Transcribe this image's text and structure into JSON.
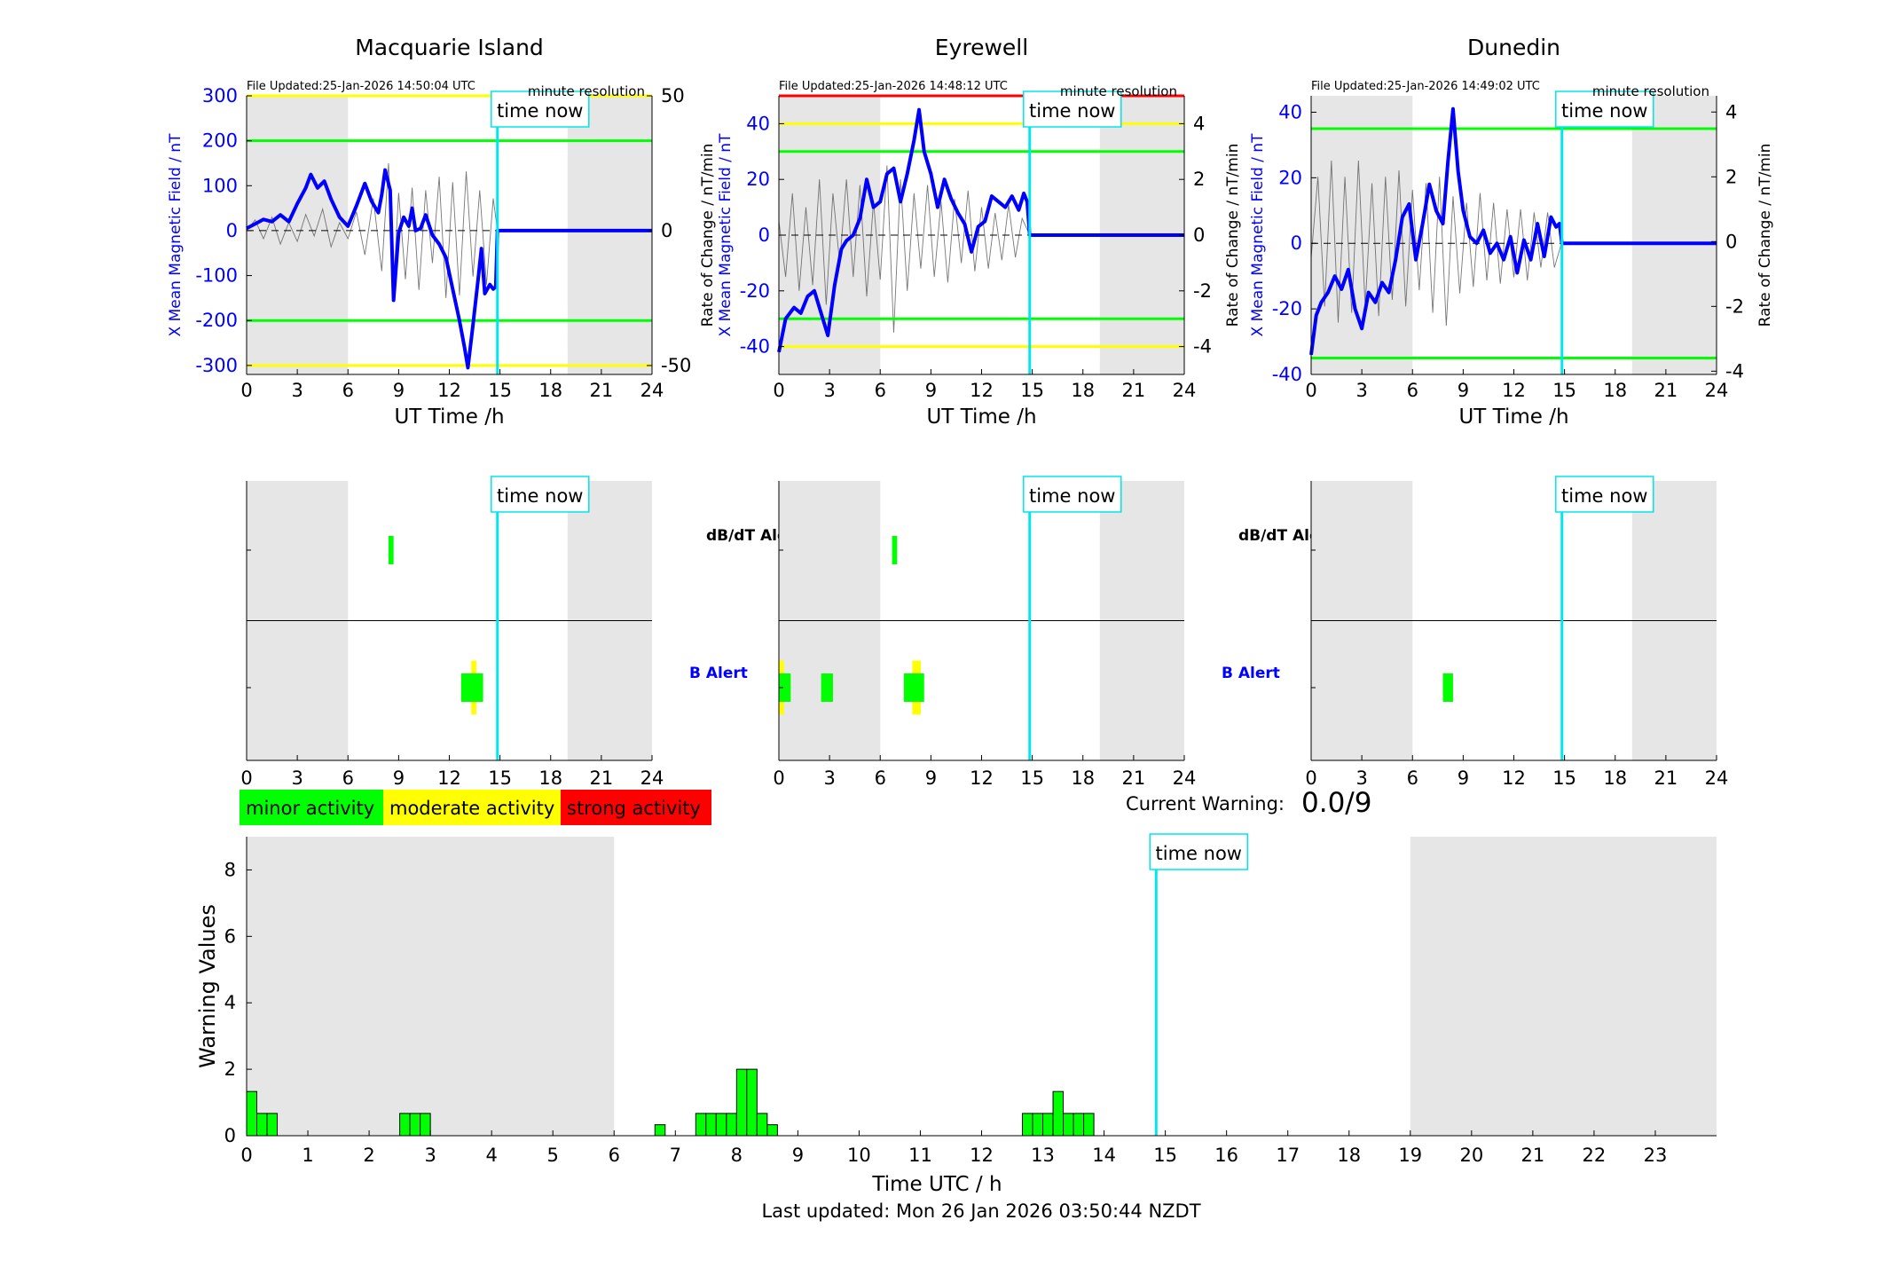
{
  "time_now_label": "time now",
  "timestamp": "Last updated: Mon 26 Jan 2026 03:50:44 NZDT",
  "current_warning": {
    "label": "Current Warning:",
    "value": "0.0/9"
  },
  "legend": [
    {
      "label": "minor activity",
      "color": "#00ff00"
    },
    {
      "label": "moderate activity",
      "color": "#ffff00"
    },
    {
      "label": "strong activity",
      "color": "#ff0000"
    }
  ],
  "colors": {
    "field": "#0000ff",
    "rate": "#555555",
    "night": "#e6e6e6",
    "now": "#00e5ee",
    "green": "#00ff00",
    "yellow": "#ffff00",
    "red": "#ff0000"
  },
  "ut_xlabel": "UT Time /h",
  "ut_ticks": [
    "0",
    "3",
    "6",
    "9",
    "12",
    "15",
    "18",
    "21",
    "24"
  ],
  "alert_labels": {
    "dbdt": "dB/dT Alert",
    "b": "B Alert"
  },
  "chart_data": [
    {
      "type": "line",
      "title": "Macquarie Island",
      "file_updated": "File Updated:25-Jan-2026 14:50:04 UTC",
      "resolution": "minute resolution",
      "ylabel": "X Mean Magnetic Field / nT",
      "y2label": "",
      "xlim": [
        0,
        24
      ],
      "ylim": [
        -320,
        300
      ],
      "y2lim": [
        -53.3,
        50
      ],
      "yticks": [
        "300",
        "200",
        "100",
        "0",
        "-100",
        "-200",
        "-300"
      ],
      "y2ticks": [
        "50",
        "0",
        "-50"
      ],
      "night": [
        [
          0,
          6
        ],
        [
          19,
          24
        ]
      ],
      "now": 14.85,
      "thresholds": [
        {
          "y": 300,
          "c": "yellow"
        },
        {
          "y": 200,
          "c": "green"
        },
        {
          "y": -200,
          "c": "green"
        },
        {
          "y": -300,
          "c": "yellow"
        }
      ],
      "field_points": [
        [
          0,
          5
        ],
        [
          0.5,
          15
        ],
        [
          1,
          25
        ],
        [
          1.5,
          20
        ],
        [
          2,
          35
        ],
        [
          2.5,
          20
        ],
        [
          3,
          60
        ],
        [
          3.5,
          95
        ],
        [
          3.8,
          125
        ],
        [
          4.2,
          95
        ],
        [
          4.6,
          110
        ],
        [
          5,
          70
        ],
        [
          5.5,
          30
        ],
        [
          6,
          10
        ],
        [
          6.5,
          55
        ],
        [
          7,
          105
        ],
        [
          7.4,
          65
        ],
        [
          7.8,
          40
        ],
        [
          8,
          80
        ],
        [
          8.2,
          135
        ],
        [
          8.5,
          90
        ],
        [
          8.7,
          -155
        ],
        [
          9,
          -5
        ],
        [
          9.3,
          30
        ],
        [
          9.6,
          10
        ],
        [
          9.8,
          50
        ],
        [
          10,
          0
        ],
        [
          10.3,
          5
        ],
        [
          10.6,
          35
        ],
        [
          11,
          -10
        ],
        [
          11.4,
          -30
        ],
        [
          11.8,
          -60
        ],
        [
          12.2,
          -130
        ],
        [
          12.6,
          -200
        ],
        [
          12.9,
          -260
        ],
        [
          13.1,
          -305
        ],
        [
          13.4,
          -210
        ],
        [
          13.7,
          -110
        ],
        [
          13.9,
          -40
        ],
        [
          14.1,
          -140
        ],
        [
          14.4,
          -120
        ],
        [
          14.6,
          -130
        ],
        [
          14.75,
          -125
        ],
        [
          14.85,
          0
        ],
        [
          24,
          0
        ]
      ],
      "rate_points": [
        [
          0,
          0
        ],
        [
          0.5,
          4
        ],
        [
          1,
          -3
        ],
        [
          1.5,
          5
        ],
        [
          2,
          -5
        ],
        [
          2.5,
          3
        ],
        [
          3,
          -4
        ],
        [
          3.5,
          6
        ],
        [
          4,
          -2
        ],
        [
          4.5,
          8
        ],
        [
          5,
          -6
        ],
        [
          5.5,
          3
        ],
        [
          6,
          -3
        ],
        [
          6.5,
          7
        ],
        [
          7,
          -9
        ],
        [
          7.5,
          12
        ],
        [
          8,
          -15
        ],
        [
          8.4,
          25
        ],
        [
          8.7,
          -20
        ],
        [
          9,
          14
        ],
        [
          9.4,
          -18
        ],
        [
          9.8,
          16
        ],
        [
          10.2,
          -22
        ],
        [
          10.6,
          15
        ],
        [
          11,
          -12
        ],
        [
          11.4,
          20
        ],
        [
          11.8,
          -25
        ],
        [
          12.2,
          18
        ],
        [
          12.6,
          -24
        ],
        [
          13,
          22
        ],
        [
          13.4,
          -17
        ],
        [
          13.8,
          15
        ],
        [
          14.2,
          -20
        ],
        [
          14.6,
          12
        ],
        [
          14.85,
          0
        ]
      ],
      "alerts": {
        "dbdt": [
          {
            "t0": 8.4,
            "t1": 8.7,
            "c": "green"
          }
        ],
        "b": [
          {
            "t0": 13.3,
            "t1": 13.6,
            "c": "yellow"
          },
          {
            "t0": 12.7,
            "t1": 14.0,
            "c": "green"
          }
        ]
      }
    },
    {
      "type": "line",
      "title": "Eyrewell",
      "file_updated": "File Updated:25-Jan-2026 14:48:12 UTC",
      "resolution": "minute resolution",
      "ylabel": "X Mean Magnetic Field / nT",
      "y2label": "Rate of Change / nT/min",
      "xlim": [
        0,
        24
      ],
      "ylim": [
        -50,
        50
      ],
      "y2lim": [
        -5,
        5
      ],
      "yticks": [
        "40",
        "20",
        "0",
        "-20",
        "-40"
      ],
      "y2ticks": [
        "4",
        "2",
        "0",
        "-2",
        "-4"
      ],
      "night": [
        [
          0,
          6
        ],
        [
          19,
          24
        ]
      ],
      "now": 14.85,
      "thresholds": [
        {
          "y": 50,
          "c": "red"
        },
        {
          "y": 40,
          "c": "yellow"
        },
        {
          "y": 30,
          "c": "green"
        },
        {
          "y": -30,
          "c": "green"
        },
        {
          "y": -40,
          "c": "yellow"
        }
      ],
      "field_points": [
        [
          0,
          -42
        ],
        [
          0.4,
          -30
        ],
        [
          0.9,
          -26
        ],
        [
          1.3,
          -28
        ],
        [
          1.7,
          -22
        ],
        [
          2.1,
          -20
        ],
        [
          2.5,
          -28
        ],
        [
          2.9,
          -36
        ],
        [
          3.3,
          -18
        ],
        [
          3.7,
          -5
        ],
        [
          4,
          -2
        ],
        [
          4.4,
          0
        ],
        [
          4.8,
          6
        ],
        [
          5.2,
          20
        ],
        [
          5.6,
          10
        ],
        [
          6,
          12
        ],
        [
          6.4,
          22
        ],
        [
          6.8,
          24
        ],
        [
          7.2,
          12
        ],
        [
          7.6,
          22
        ],
        [
          8,
          34
        ],
        [
          8.3,
          45
        ],
        [
          8.6,
          30
        ],
        [
          9,
          22
        ],
        [
          9.4,
          10
        ],
        [
          9.8,
          20
        ],
        [
          10.2,
          13
        ],
        [
          10.6,
          8
        ],
        [
          11,
          4
        ],
        [
          11.4,
          -6
        ],
        [
          11.8,
          3
        ],
        [
          12.2,
          5
        ],
        [
          12.6,
          14
        ],
        [
          13,
          12
        ],
        [
          13.4,
          10
        ],
        [
          13.8,
          14
        ],
        [
          14.2,
          9
        ],
        [
          14.5,
          15
        ],
        [
          14.7,
          12
        ],
        [
          14.85,
          0
        ],
        [
          24,
          0
        ]
      ],
      "rate_points": [
        [
          0,
          0.5
        ],
        [
          0.4,
          -1.5
        ],
        [
          0.8,
          1.5
        ],
        [
          1.2,
          -2
        ],
        [
          1.6,
          1
        ],
        [
          2,
          -1.8
        ],
        [
          2.4,
          2
        ],
        [
          2.8,
          -2.5
        ],
        [
          3.2,
          1.5
        ],
        [
          3.6,
          -1
        ],
        [
          4,
          2
        ],
        [
          4.4,
          -1.5
        ],
        [
          4.8,
          1.8
        ],
        [
          5.2,
          -2.2
        ],
        [
          5.6,
          1.2
        ],
        [
          6,
          -1.6
        ],
        [
          6.4,
          2.5
        ],
        [
          6.8,
          -3.5
        ],
        [
          7.2,
          2
        ],
        [
          7.6,
          -2
        ],
        [
          8,
          1.5
        ],
        [
          8.4,
          -1.2
        ],
        [
          8.8,
          1.8
        ],
        [
          9.2,
          -1.5
        ],
        [
          9.6,
          1.2
        ],
        [
          10,
          -1.7
        ],
        [
          10.4,
          1.3
        ],
        [
          10.8,
          -1
        ],
        [
          11.2,
          1.6
        ],
        [
          11.6,
          -1.3
        ],
        [
          12,
          1
        ],
        [
          12.4,
          -1.2
        ],
        [
          12.8,
          0.8
        ],
        [
          13.2,
          -0.9
        ],
        [
          13.6,
          1.1
        ],
        [
          14,
          -0.8
        ],
        [
          14.4,
          0.6
        ],
        [
          14.85,
          0
        ]
      ],
      "alerts": {
        "dbdt": [
          {
            "t0": 6.7,
            "t1": 7.0,
            "c": "green"
          }
        ],
        "b": [
          {
            "t0": 0,
            "t1": 0.3,
            "c": "yellow"
          },
          {
            "t0": 0,
            "t1": 0.7,
            "c": "green"
          },
          {
            "t0": 2.5,
            "t1": 3.2,
            "c": "green"
          },
          {
            "t0": 7.9,
            "t1": 8.4,
            "c": "yellow"
          },
          {
            "t0": 7.4,
            "t1": 8.6,
            "c": "green"
          }
        ]
      }
    },
    {
      "type": "line",
      "title": "Dunedin",
      "file_updated": "File Updated:25-Jan-2026 14:49:02 UTC",
      "resolution": "minute resolution",
      "ylabel": "X Mean Magnetic Field / nT",
      "y2label": "Rate of Change / nT/min",
      "xlim": [
        0,
        24
      ],
      "ylim": [
        -40,
        45
      ],
      "y2lim": [
        -4.1,
        4.5
      ],
      "yticks": [
        "40",
        "20",
        "0",
        "-20",
        "-40"
      ],
      "y2ticks": [
        "4",
        "2",
        "0",
        "-2",
        "-4"
      ],
      "night": [
        [
          0,
          6
        ],
        [
          19,
          24
        ]
      ],
      "now": 14.85,
      "thresholds": [
        {
          "y": 35,
          "c": "green"
        },
        {
          "y": -35,
          "c": "green"
        }
      ],
      "field_points": [
        [
          0,
          -34
        ],
        [
          0.3,
          -22
        ],
        [
          0.6,
          -18
        ],
        [
          1,
          -15
        ],
        [
          1.4,
          -10
        ],
        [
          1.8,
          -14
        ],
        [
          2.2,
          -8
        ],
        [
          2.6,
          -20
        ],
        [
          3,
          -26
        ],
        [
          3.4,
          -15
        ],
        [
          3.8,
          -18
        ],
        [
          4.2,
          -12
        ],
        [
          4.6,
          -15
        ],
        [
          5,
          -5
        ],
        [
          5.4,
          8
        ],
        [
          5.8,
          12
        ],
        [
          6.2,
          -5
        ],
        [
          6.6,
          6
        ],
        [
          7,
          18
        ],
        [
          7.4,
          10
        ],
        [
          7.8,
          6
        ],
        [
          8.1,
          25
        ],
        [
          8.4,
          41
        ],
        [
          8.7,
          22
        ],
        [
          9,
          10
        ],
        [
          9.4,
          2
        ],
        [
          9.8,
          0
        ],
        [
          10.2,
          4
        ],
        [
          10.6,
          -3
        ],
        [
          11,
          0
        ],
        [
          11.4,
          -5
        ],
        [
          11.8,
          2
        ],
        [
          12.2,
          -9
        ],
        [
          12.6,
          1
        ],
        [
          13,
          -5
        ],
        [
          13.4,
          6
        ],
        [
          13.8,
          -4
        ],
        [
          14.2,
          8
        ],
        [
          14.5,
          5
        ],
        [
          14.7,
          6
        ],
        [
          14.85,
          0
        ],
        [
          24,
          0
        ]
      ],
      "rate_points": [
        [
          0,
          -0.5
        ],
        [
          0.4,
          2
        ],
        [
          0.8,
          -2
        ],
        [
          1.2,
          2.5
        ],
        [
          1.6,
          -2.5
        ],
        [
          2,
          2
        ],
        [
          2.4,
          -2.2
        ],
        [
          2.8,
          2.5
        ],
        [
          3.2,
          -2
        ],
        [
          3.6,
          1.8
        ],
        [
          4,
          -2.3
        ],
        [
          4.4,
          2
        ],
        [
          4.8,
          -1.8
        ],
        [
          5.2,
          2.2
        ],
        [
          5.6,
          -2
        ],
        [
          6,
          1.6
        ],
        [
          6.4,
          -1.5
        ],
        [
          6.8,
          1.8
        ],
        [
          7.2,
          -2.2
        ],
        [
          7.6,
          2
        ],
        [
          8,
          -2.6
        ],
        [
          8.4,
          1.4
        ],
        [
          8.8,
          -1.6
        ],
        [
          9.2,
          1.2
        ],
        [
          9.6,
          -1.4
        ],
        [
          10,
          1.5
        ],
        [
          10.4,
          -1.2
        ],
        [
          10.8,
          1.2
        ],
        [
          11.2,
          -1.3
        ],
        [
          11.6,
          1
        ],
        [
          12,
          -1.1
        ],
        [
          12.4,
          1
        ],
        [
          12.8,
          -1.2
        ],
        [
          13.2,
          0.9
        ],
        [
          13.6,
          -0.8
        ],
        [
          14,
          0.9
        ],
        [
          14.4,
          -0.8
        ],
        [
          14.85,
          0
        ]
      ],
      "alerts": {
        "dbdt": [],
        "b": [
          {
            "t0": 7.8,
            "t1": 8.4,
            "c": "green"
          }
        ]
      }
    },
    {
      "type": "bar",
      "title": "",
      "xlabel": "Time UTC / h",
      "ylabel": "Warning Values",
      "xlim": [
        0,
        24
      ],
      "ylim": [
        0,
        9
      ],
      "xticks": [
        "0",
        "1",
        "2",
        "3",
        "4",
        "5",
        "6",
        "7",
        "8",
        "9",
        "10",
        "11",
        "12",
        "13",
        "14",
        "15",
        "16",
        "17",
        "18",
        "19",
        "20",
        "21",
        "22",
        "23"
      ],
      "yticks": [
        "0",
        "2",
        "4",
        "6",
        "8"
      ],
      "night": [
        [
          0,
          6
        ],
        [
          19,
          24
        ]
      ],
      "now": 14.85,
      "bar_width_h": 0.1667,
      "bars": [
        {
          "x": 0.0,
          "v": 1.33
        },
        {
          "x": 0.1667,
          "v": 0.67
        },
        {
          "x": 0.3333,
          "v": 0.67
        },
        {
          "x": 2.5,
          "v": 0.67
        },
        {
          "x": 2.6667,
          "v": 0.67
        },
        {
          "x": 2.8333,
          "v": 0.67
        },
        {
          "x": 6.6667,
          "v": 0.33
        },
        {
          "x": 7.3333,
          "v": 0.67
        },
        {
          "x": 7.5,
          "v": 0.67
        },
        {
          "x": 7.6667,
          "v": 0.67
        },
        {
          "x": 7.8333,
          "v": 0.67
        },
        {
          "x": 8.0,
          "v": 2.0
        },
        {
          "x": 8.1667,
          "v": 2.0
        },
        {
          "x": 8.3333,
          "v": 0.67
        },
        {
          "x": 8.5,
          "v": 0.33
        },
        {
          "x": 12.6667,
          "v": 0.67
        },
        {
          "x": 12.8333,
          "v": 0.67
        },
        {
          "x": 13.0,
          "v": 0.67
        },
        {
          "x": 13.1667,
          "v": 1.33
        },
        {
          "x": 13.3333,
          "v": 0.67
        },
        {
          "x": 13.5,
          "v": 0.67
        },
        {
          "x": 13.6667,
          "v": 0.67
        }
      ]
    }
  ]
}
